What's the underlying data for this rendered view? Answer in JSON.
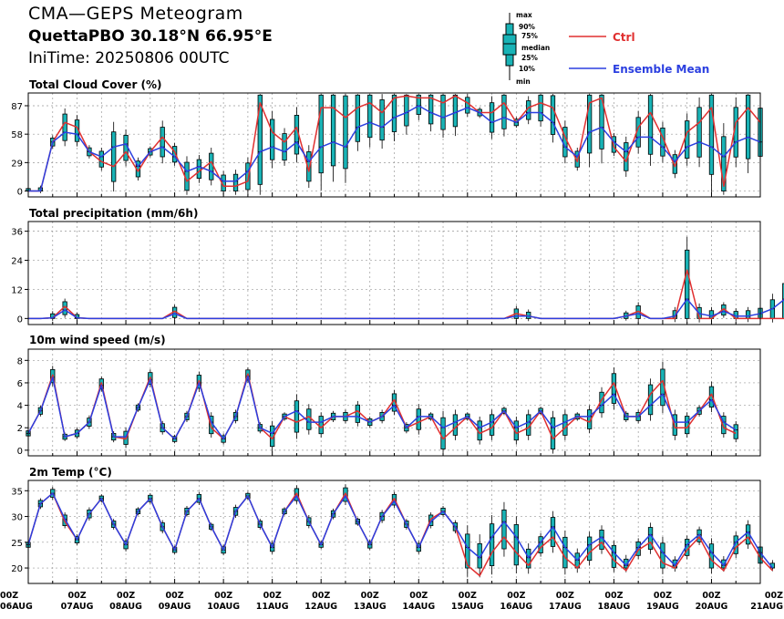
{
  "header": {
    "title": "CMA—GEPS Meteogram",
    "location": "QuettaPBO 30.18°N 66.95°E",
    "init_time": "IniTime: 20250806 00UTC"
  },
  "legend": {
    "box_labels": [
      "max",
      "90%",
      "75%",
      "median",
      "25%",
      "10%",
      "min"
    ],
    "ctrl_label": "Ctrl",
    "mean_label": "Ensemble Mean",
    "colors": {
      "ctrl": "#e03030",
      "mean": "#2b3fe0",
      "box": "#19b3b6"
    }
  },
  "chart_data": [
    {
      "type": "box",
      "title": "Total Cloud Cover (%)",
      "yticks": [
        0,
        29,
        58,
        87
      ],
      "ylim": [
        -6,
        100
      ],
      "x_start_hour": 0,
      "x_step_hours": 6,
      "ctrl": [
        0,
        0,
        50,
        70,
        65,
        40,
        30,
        25,
        40,
        20,
        40,
        55,
        40,
        10,
        20,
        30,
        5,
        5,
        10,
        90,
        60,
        50,
        65,
        20,
        85,
        85,
        75,
        85,
        90,
        80,
        95,
        97,
        95,
        95,
        90,
        97,
        90,
        80,
        80,
        90,
        70,
        85,
        90,
        85,
        55,
        30,
        90,
        95,
        45,
        30,
        65,
        80,
        55,
        25,
        60,
        70,
        85,
        5,
        70,
        85,
        70
      ],
      "mean": [
        0,
        0,
        50,
        60,
        58,
        40,
        35,
        45,
        48,
        25,
        40,
        45,
        35,
        20,
        25,
        20,
        10,
        10,
        20,
        40,
        45,
        40,
        50,
        30,
        45,
        50,
        45,
        65,
        70,
        65,
        75,
        80,
        87,
        80,
        75,
        80,
        85,
        80,
        70,
        75,
        70,
        80,
        80,
        70,
        45,
        35,
        60,
        65,
        50,
        40,
        55,
        55,
        45,
        30,
        45,
        50,
        45,
        35,
        50,
        55,
        50
      ]
    },
    {
      "type": "box",
      "title": "Total precipitation (mm/6h)",
      "yticks": [
        0,
        12,
        24,
        36
      ],
      "ylim": [
        -2.5,
        40
      ],
      "x_start_hour": 0,
      "x_step_hours": 6,
      "ctrl": [
        0,
        0,
        0.3,
        5,
        0.3,
        0,
        0,
        0,
        0,
        0,
        0,
        0,
        3,
        0,
        0,
        0,
        0,
        0,
        0,
        0,
        0,
        0,
        0,
        0,
        0,
        0,
        0,
        0,
        0,
        0,
        0,
        0,
        0,
        0,
        0,
        0,
        0,
        0,
        0,
        0,
        2,
        1,
        0,
        0,
        0,
        0,
        0,
        0,
        0,
        1,
        3,
        0,
        0,
        0,
        20,
        0,
        0,
        4,
        0,
        0,
        0,
        0,
        0,
        0,
        7,
        0,
        0,
        0,
        0,
        0,
        0,
        8,
        0,
        0,
        0,
        0,
        0,
        0,
        0,
        0,
        0,
        0,
        0,
        0,
        0,
        0,
        0,
        0,
        0,
        0,
        0,
        0,
        0,
        0,
        0,
        0,
        3,
        0
      ],
      "mean": [
        0,
        0,
        0.3,
        3.5,
        0.3,
        0,
        0,
        0,
        0,
        0,
        0,
        0,
        2,
        0,
        0,
        0,
        0,
        0,
        0,
        0,
        0,
        0,
        0,
        0,
        0,
        0,
        0,
        0,
        0,
        0,
        0,
        0,
        0,
        0,
        0,
        0,
        0,
        0,
        0,
        0,
        1,
        1,
        0,
        0,
        0,
        0,
        0,
        0,
        0,
        1,
        2,
        0,
        0,
        1,
        8,
        2,
        1,
        3,
        1,
        1,
        2,
        4,
        8,
        3,
        2,
        2,
        4,
        3,
        1,
        2,
        3,
        6,
        3,
        1,
        2,
        3,
        4,
        2,
        1,
        2,
        3,
        4,
        3,
        1,
        2,
        3,
        4,
        2,
        1,
        2,
        3,
        4,
        2,
        1,
        2,
        3,
        4,
        2,
        1
      ]
    },
    {
      "type": "box",
      "title": "10m wind speed (m/s)",
      "yticks": [
        0,
        2,
        4,
        6,
        8
      ],
      "ylim": [
        -0.5,
        9
      ],
      "x_start_hour": 0,
      "x_step_hours": 6,
      "ctrl": [
        1.5,
        3.5,
        6.7,
        1.2,
        1.5,
        2.5,
        6.0,
        1.2,
        1.0,
        3.8,
        6.5,
        2.0,
        1.0,
        3.0,
        6.2,
        2.0,
        1.0,
        3.0,
        6.8,
        2.0,
        1.0,
        3.0,
        2.5,
        3.0,
        2.0,
        3.0,
        3.0,
        3.5,
        2.5,
        3.0,
        4.5,
        2.0,
        2.5,
        3.0,
        1.0,
        2.0,
        3.0,
        1.5,
        2.0,
        3.5,
        1.5,
        2.0,
        3.5,
        1.0,
        2.0,
        3.0,
        2.5,
        4.5,
        6.0,
        3.0,
        3.0,
        5.0,
        6.2,
        2.0,
        2.0,
        3.5,
        5.0,
        2.0,
        1.5
      ],
      "mean": [
        1.5,
        3.5,
        6.5,
        1.2,
        1.5,
        2.5,
        5.8,
        1.2,
        1.2,
        3.8,
        6.3,
        2.0,
        1.0,
        3.0,
        6.0,
        2.5,
        1.0,
        3.0,
        6.6,
        2.0,
        1.5,
        3.0,
        3.5,
        2.5,
        2.5,
        3.0,
        3.0,
        3.0,
        2.5,
        3.0,
        4.0,
        2.0,
        3.0,
        3.0,
        2.0,
        2.5,
        3.0,
        2.0,
        2.5,
        3.5,
        2.0,
        2.5,
        3.5,
        2.0,
        2.5,
        3.0,
        3.0,
        4.0,
        5.0,
        3.0,
        3.0,
        4.0,
        5.0,
        2.5,
        2.5,
        3.5,
        4.5,
        2.5,
        1.8
      ]
    },
    {
      "type": "box",
      "title": "2m Temp (°C)",
      "yticks": [
        20,
        25,
        30,
        35
      ],
      "ylim": [
        17,
        37
      ],
      "x_start_hour": 0,
      "x_step_hours": 6,
      "ctrl": [
        24.5,
        32.5,
        34.5,
        29.0,
        25.5,
        30.5,
        33.5,
        28.5,
        24.5,
        31.0,
        33.5,
        28.0,
        23.5,
        31.0,
        33.5,
        28.0,
        23.5,
        31.0,
        34.0,
        28.5,
        24.0,
        31.0,
        34.5,
        29.0,
        24.5,
        30.5,
        34.5,
        29.0,
        24.5,
        30.0,
        33.5,
        28.5,
        24.0,
        29.5,
        31.0,
        28.0,
        20.5,
        18.5,
        23.0,
        26.0,
        23.0,
        20.5,
        24.0,
        26.0,
        22.0,
        20.0,
        23.0,
        25.0,
        21.5,
        19.5,
        23.5,
        25.0,
        21.0,
        20.0,
        23.5,
        26.0,
        21.5,
        19.5,
        24.0,
        26.0,
        22.0,
        19.5
      ],
      "mean": [
        24.5,
        32.5,
        34.5,
        29.5,
        25.5,
        30.5,
        33.5,
        28.5,
        24.5,
        31.0,
        33.5,
        28.0,
        23.5,
        31.0,
        33.5,
        28.0,
        23.5,
        31.0,
        34.0,
        28.5,
        24.0,
        31.0,
        34.0,
        29.0,
        24.5,
        30.5,
        34.0,
        29.0,
        24.5,
        30.0,
        33.0,
        28.5,
        24.0,
        29.0,
        31.0,
        28.0,
        24.0,
        22.0,
        26.0,
        29.0,
        26.0,
        22.0,
        25.0,
        28.0,
        24.0,
        21.5,
        24.5,
        26.0,
        23.0,
        20.5,
        24.0,
        26.5,
        23.0,
        20.5,
        24.5,
        26.5,
        23.0,
        20.5,
        25.0,
        27.0,
        23.0,
        20.0
      ]
    }
  ],
  "x_axis": {
    "tick_labels": [
      [
        "00Z",
        "06AUG"
      ],
      [
        "00Z",
        "07AUG"
      ],
      [
        "00Z",
        "08AUG"
      ],
      [
        "00Z",
        "09AUG"
      ],
      [
        "00Z",
        "10AUG"
      ],
      [
        "00Z",
        "11AUG"
      ],
      [
        "00Z",
        "12AUG"
      ],
      [
        "00Z",
        "13AUG"
      ],
      [
        "00Z",
        "14AUG"
      ],
      [
        "00Z",
        "15AUG"
      ],
      [
        "00Z",
        "16AUG"
      ],
      [
        "00Z",
        "17AUG"
      ],
      [
        "00Z",
        "18AUG"
      ],
      [
        "00Z",
        "19AUG"
      ],
      [
        "00Z",
        "20AUG"
      ],
      [
        "00Z",
        "21AUG"
      ]
    ]
  }
}
